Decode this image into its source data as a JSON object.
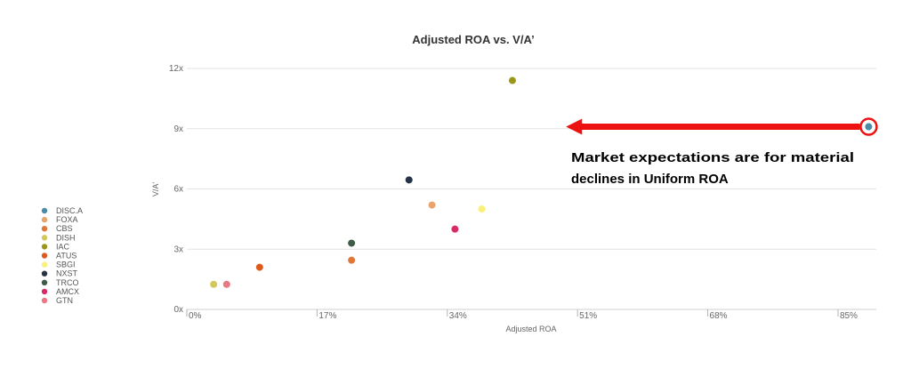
{
  "chart_data": {
    "type": "scatter",
    "title": "Adjusted ROA vs. V/A’",
    "xlabel": "Adjusted ROA",
    "ylabel": "V/A'",
    "x_ticks": [
      "0%",
      "17%",
      "34%",
      "51%",
      "68%",
      "85%"
    ],
    "x_tick_values": [
      0,
      17,
      34,
      51,
      68,
      85
    ],
    "y_ticks": [
      "0x",
      "3x",
      "6x",
      "9x",
      "12x"
    ],
    "y_tick_values": [
      0,
      3,
      6,
      9,
      12
    ],
    "xlim": [
      0,
      90
    ],
    "ylim": [
      0,
      12
    ],
    "grid": "horizontal",
    "legend_position": "left",
    "series": [
      {
        "name": "DISC.A",
        "color": "#4a8ca8",
        "x": 89.0,
        "y": 9.1,
        "highlighted": true
      },
      {
        "name": "FOXA",
        "color": "#e8a46a",
        "x": 32.0,
        "y": 5.2
      },
      {
        "name": "CBS",
        "color": "#e07838",
        "x": 21.5,
        "y": 2.45
      },
      {
        "name": "DISH",
        "color": "#d4c85a",
        "x": 3.5,
        "y": 1.25
      },
      {
        "name": "IAC",
        "color": "#9a961a",
        "x": 42.5,
        "y": 11.4
      },
      {
        "name": "ATUS",
        "color": "#dd5a1e",
        "x": 9.5,
        "y": 2.1
      },
      {
        "name": "SBGI",
        "color": "#f8f07a",
        "x": 38.5,
        "y": 5.0
      },
      {
        "name": "NXST",
        "color": "#253345",
        "x": 29.0,
        "y": 6.45
      },
      {
        "name": "TRCO",
        "color": "#3e5c48",
        "x": 21.5,
        "y": 3.3
      },
      {
        "name": "AMCX",
        "color": "#d82a66",
        "x": 35.0,
        "y": 4.0
      },
      {
        "name": "GTN",
        "color": "#ea7882",
        "x": 5.2,
        "y": 1.25
      }
    ],
    "annotation": {
      "text_line1": "Market expectations are for material",
      "text_line2": "declines in Uniform ROA",
      "arrow_color": "#ee1111",
      "arrow_from_series": "DISC.A",
      "arrow_to_x": 49.5
    }
  }
}
